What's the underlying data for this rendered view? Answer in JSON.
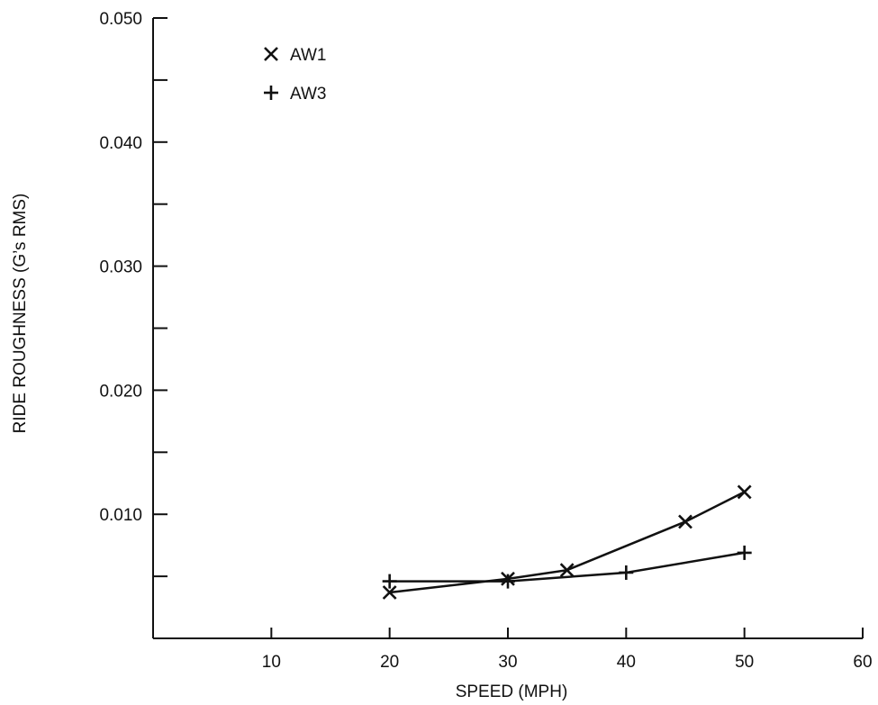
{
  "chart_data": {
    "type": "line",
    "title": "",
    "xlabel": "SPEED (MPH)",
    "ylabel": "RIDE ROUGHNESS (G’s RMS)",
    "xlim": [
      0,
      60
    ],
    "ylim": [
      0,
      0.05
    ],
    "x_ticks": [
      10,
      20,
      30,
      40,
      50,
      60
    ],
    "x_tick_labels": [
      "10",
      "20",
      "30",
      "40",
      "50",
      "60"
    ],
    "y_ticks": [
      0.005,
      0.01,
      0.015,
      0.02,
      0.025,
      0.03,
      0.035,
      0.04,
      0.045,
      0.05
    ],
    "y_tick_labels": [
      "",
      "0.010",
      "",
      "0.020",
      "",
      "0.030",
      "",
      "0.040",
      "",
      "0.050"
    ],
    "grid": false,
    "legend_position": "top-left",
    "series": [
      {
        "name": "AW1",
        "marker": "x",
        "x": [
          20,
          30,
          35,
          45,
          50
        ],
        "y": [
          0.0037,
          0.0048,
          0.0055,
          0.0094,
          0.0118
        ]
      },
      {
        "name": "AW3",
        "marker": "+",
        "x": [
          20,
          30,
          40,
          50
        ],
        "y": [
          0.0046,
          0.0046,
          0.0053,
          0.0069
        ]
      }
    ]
  }
}
